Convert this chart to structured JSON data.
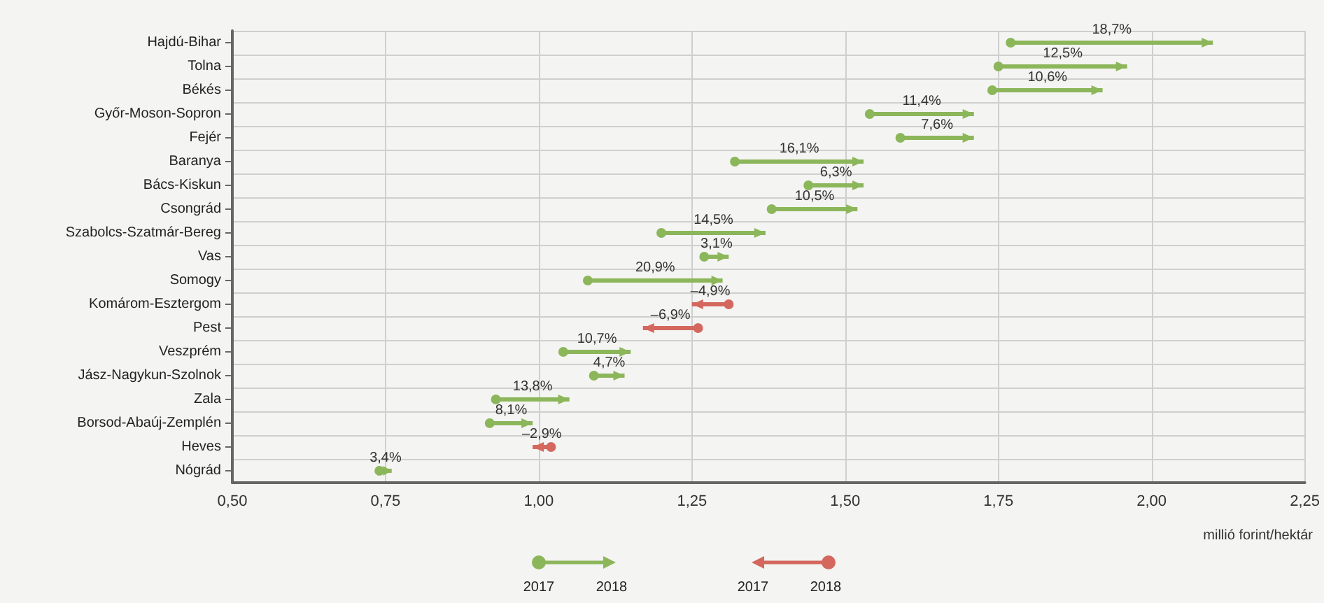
{
  "chart_data": {
    "type": "bar",
    "orientation": "horizontal",
    "xlabel": "millió forint/hektár",
    "categories": [
      "Hajdú-Bihar",
      "Tolna",
      "Békés",
      "Győr-Moson-Sopron",
      "Fejér",
      "Baranya",
      "Bács-Kiskun",
      "Csongrád",
      "Szabolcs-Szatmár-Bereg",
      "Vas",
      "Somogy",
      "Komárom-Esztergom",
      "Pest",
      "Veszprém",
      "Jász-Nagykun-Szolnok",
      "Zala",
      "Borsod-Abaúj-Zemplén",
      "Heves",
      "Nógrád"
    ],
    "base": [
      1.77,
      1.75,
      1.74,
      1.54,
      1.59,
      1.32,
      1.44,
      1.38,
      1.2,
      1.27,
      1.08,
      1.31,
      1.26,
      1.04,
      1.09,
      0.93,
      0.92,
      1.02,
      0.74
    ],
    "values": [
      0.33,
      0.21,
      0.18,
      0.17,
      0.12,
      0.21,
      0.09,
      0.14,
      0.17,
      0.04,
      0.22,
      -0.06,
      -0.09,
      0.11,
      0.05,
      0.12,
      0.07,
      -0.03,
      0.02
    ],
    "colors": [
      "#8cb65a",
      "#8cb65a",
      "#8cb65a",
      "#8cb65a",
      "#8cb65a",
      "#8cb65a",
      "#8cb65a",
      "#8cb65a",
      "#8cb65a",
      "#8cb65a",
      "#8cb65a",
      "#d4675e",
      "#d4675e",
      "#8cb65a",
      "#8cb65a",
      "#8cb65a",
      "#8cb65a",
      "#d4675e",
      "#8cb65a"
    ],
    "xlim": [
      0.5,
      2.25
    ],
    "xticks": [
      {
        "value": 0.5,
        "label": "0,50"
      },
      {
        "value": 0.75,
        "label": "0,75"
      },
      {
        "value": 1,
        "label": "1,00"
      },
      {
        "value": 1.25,
        "label": "1,25"
      },
      {
        "value": 1.5,
        "label": "1,50"
      },
      {
        "value": 1.75,
        "label": "1,75"
      },
      {
        "value": 2,
        "label": "2,00"
      },
      {
        "value": 2.25,
        "label": "2,25"
      }
    ],
    "grid": true,
    "annotations": [
      "2017",
      "2018",
      "2017",
      "2018",
      {
        "text": "18,7%",
        "x": 1.935,
        "y": "Hajdú-Bihar"
      },
      {
        "text": "12,5%",
        "x": 1.855,
        "y": "Tolna"
      },
      {
        "text": "10,6%",
        "x": 1.83,
        "y": "Békés"
      },
      {
        "text": "11,4%",
        "x": 1.625,
        "y": "Győr-Moson-Sopron"
      },
      {
        "text": "7,6%",
        "x": 1.65,
        "y": "Fejér"
      },
      {
        "text": "16,1%",
        "x": 1.425,
        "y": "Baranya"
      },
      {
        "text": "6,3%",
        "x": 1.485,
        "y": "Bács-Kiskun"
      },
      {
        "text": "10,5%",
        "x": 1.45,
        "y": "Csongrád"
      },
      {
        "text": "14,5%",
        "x": 1.285,
        "y": "Szabolcs-Szatmár-Bereg"
      },
      {
        "text": "3,1%",
        "x": 1.29,
        "y": "Vas"
      },
      {
        "text": "20,9%",
        "x": 1.19,
        "y": "Somogy"
      },
      {
        "text": "–4,9%",
        "x": 1.28,
        "y": "Komárom-Esztergom"
      },
      {
        "text": "–6,9%",
        "x": 1.215,
        "y": "Pest"
      },
      {
        "text": "10,7%",
        "x": 1.095,
        "y": "Veszprém"
      },
      {
        "text": "4,7%",
        "x": 1.115,
        "y": "Jász-Nagykun-Szolnok"
      },
      {
        "text": "13,8%",
        "x": 0.99,
        "y": "Zala"
      },
      {
        "text": "8,1%",
        "x": 0.955,
        "y": "Borsod-Abaúj-Zemplén"
      },
      {
        "text": "–2,9%",
        "x": 1.005,
        "y": "Heves"
      },
      {
        "text": "3,4%",
        "x": 0.75,
        "y": "Nógrád"
      }
    ]
  }
}
